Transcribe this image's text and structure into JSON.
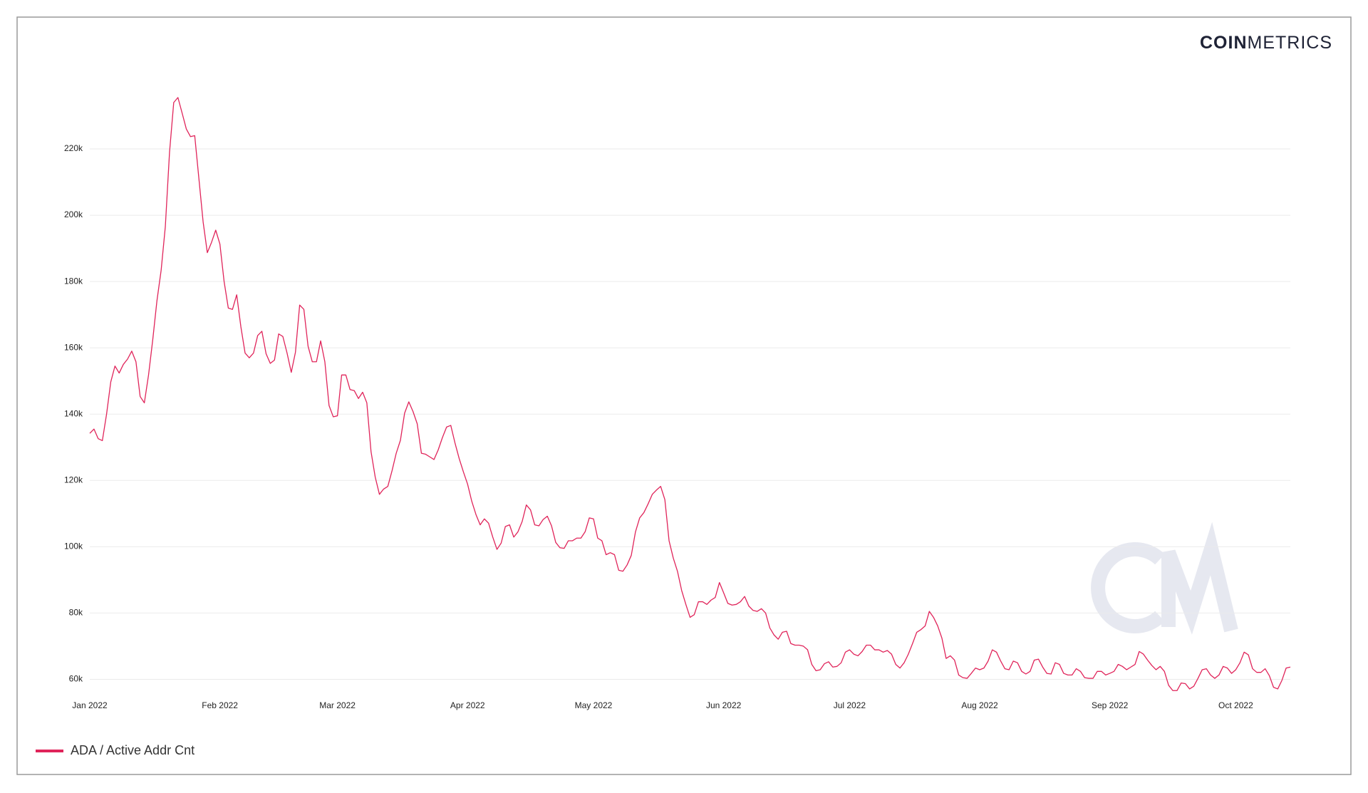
{
  "chart_data": {
    "type": "line",
    "logo_bold": "COIN",
    "logo_light": "METRICS",
    "categories": [
      "Jan 2022",
      null,
      null,
      null,
      null,
      null,
      null,
      null,
      null,
      null,
      null,
      null,
      null,
      null,
      null,
      null,
      null,
      null,
      null,
      null,
      null,
      null,
      null,
      null,
      null,
      null,
      null,
      null,
      null,
      null,
      null,
      "Feb 2022",
      null,
      null,
      null,
      null,
      null,
      null,
      null,
      null,
      null,
      null,
      null,
      null,
      null,
      null,
      null,
      null,
      null,
      null,
      null,
      null,
      null,
      null,
      null,
      null,
      null,
      null,
      null,
      "Mar 2022",
      null,
      null,
      null,
      null,
      null,
      null,
      null,
      null,
      null,
      null,
      null,
      null,
      null,
      null,
      null,
      null,
      null,
      null,
      null,
      null,
      null,
      null,
      null,
      null,
      null,
      null,
      null,
      null,
      null,
      null,
      "Apr 2022",
      null,
      null,
      null,
      null,
      null,
      null,
      null,
      null,
      null,
      null,
      null,
      null,
      null,
      null,
      null,
      null,
      null,
      null,
      null,
      null,
      null,
      null,
      null,
      null,
      null,
      null,
      null,
      null,
      null,
      "May 2022",
      null,
      null,
      null,
      null,
      null,
      null,
      null,
      null,
      null,
      null,
      null,
      null,
      null,
      null,
      null,
      null,
      null,
      null,
      null,
      null,
      null,
      null,
      null,
      null,
      null,
      null,
      null,
      null,
      null,
      null,
      "Jun 2022",
      null,
      null,
      null,
      null,
      null,
      null,
      null,
      null,
      null,
      null,
      null,
      null,
      null,
      null,
      null,
      null,
      null,
      null,
      null,
      null,
      null,
      null,
      null,
      null,
      null,
      null,
      null,
      null,
      null,
      "Jul 2022",
      null,
      null,
      null,
      null,
      null,
      null,
      null,
      null,
      null,
      null,
      null,
      null,
      null,
      null,
      null,
      null,
      null,
      null,
      null,
      null,
      null,
      null,
      null,
      null,
      null,
      null,
      null,
      null,
      null,
      null,
      "Aug 2022",
      null,
      null,
      null,
      null,
      null,
      null,
      null,
      null,
      null,
      null,
      null,
      null,
      null,
      null,
      null,
      null,
      null,
      null,
      null,
      null,
      null,
      null,
      null,
      null,
      null,
      null,
      null,
      null,
      null,
      null,
      "Sep 2022",
      null,
      null,
      null,
      null,
      null,
      null,
      null,
      null,
      null,
      null,
      null,
      null,
      null,
      null,
      null,
      null,
      null,
      null,
      null,
      null,
      null,
      null,
      null,
      null,
      null,
      null,
      null,
      null,
      null,
      "Oct 2022",
      null,
      null,
      null,
      null,
      null,
      null,
      null,
      null,
      null,
      null,
      null,
      null,
      null
    ],
    "series": [
      {
        "name": "ADA / Active Addr Cnt",
        "color": "#e0245a",
        "values": [
          134200,
          135500,
          132600,
          132000,
          140000,
          149700,
          154500,
          152400,
          155000,
          156600,
          159000,
          155800,
          145300,
          143400,
          151800,
          162400,
          174200,
          183400,
          196600,
          219000,
          234000,
          235500,
          230800,
          226000,
          223700,
          224000,
          211000,
          198000,
          188700,
          191800,
          195500,
          191300,
          180000,
          172000,
          171600,
          176000,
          166300,
          158400,
          157000,
          158400,
          163700,
          165000,
          158200,
          155300,
          156300,
          164200,
          163400,
          158400,
          152600,
          158700,
          172900,
          171600,
          160500,
          155800,
          155800,
          162100,
          155800,
          142600,
          139200,
          139500,
          151800,
          151800,
          147400,
          147100,
          144700,
          146600,
          143400,
          128700,
          121000,
          115800,
          117400,
          118200,
          122900,
          128200,
          132100,
          140300,
          143700,
          140800,
          137100,
          128200,
          127900,
          127100,
          126300,
          129200,
          132900,
          136100,
          136600,
          131300,
          126600,
          122600,
          118900,
          113700,
          109700,
          106600,
          108400,
          107100,
          102900,
          99200,
          101100,
          106100,
          106600,
          102900,
          104500,
          107600,
          112600,
          111100,
          106600,
          106300,
          108200,
          109200,
          106300,
          101300,
          99700,
          99500,
          101800,
          101800,
          102600,
          102600,
          104500,
          108700,
          108400,
          102600,
          101800,
          97600,
          98200,
          97600,
          92900,
          92600,
          94500,
          97400,
          104500,
          108700,
          110300,
          112900,
          115800,
          117100,
          118200,
          114200,
          101800,
          96600,
          92600,
          86800,
          82600,
          78700,
          79500,
          83400,
          83400,
          82600,
          83900,
          84700,
          89200,
          86100,
          82900,
          82400,
          82600,
          83400,
          85000,
          82100,
          80800,
          80500,
          81300,
          80000,
          75500,
          73400,
          72100,
          74200,
          74500,
          70800,
          70300,
          70300,
          70000,
          68900,
          64500,
          62600,
          62900,
          64700,
          65300,
          63700,
          63900,
          65000,
          68200,
          68900,
          67600,
          67100,
          68400,
          70300,
          70300,
          68900,
          68900,
          68200,
          68700,
          67600,
          64500,
          63400,
          65000,
          67600,
          70800,
          74200,
          75000,
          76100,
          80500,
          78700,
          76100,
          72400,
          66300,
          67100,
          65800,
          61300,
          60500,
          60300,
          61800,
          63400,
          62900,
          63400,
          65500,
          68900,
          68200,
          65500,
          63200,
          62900,
          65500,
          65000,
          62400,
          61600,
          62400,
          65800,
          66100,
          63700,
          61800,
          61600,
          65000,
          64500,
          61800,
          61300,
          61300,
          63200,
          62400,
          60500,
          60300,
          60300,
          62400,
          62400,
          61300,
          61800,
          62400,
          64500,
          63900,
          62900,
          63700,
          64500,
          68400,
          67600,
          65800,
          64200,
          62900,
          63900,
          62400,
          58200,
          56600,
          56600,
          58900,
          58700,
          57100,
          57900,
          60300,
          62900,
          63200,
          61300,
          60300,
          61300,
          63900,
          63400,
          61800,
          62900,
          65000,
          68200,
          67400,
          63200,
          62100,
          62100,
          63200,
          61100,
          57600,
          57100,
          59700,
          63400,
          63700
        ]
      }
    ],
    "ylim": [
      55800,
      238700
    ],
    "yticks": [
      {
        "value": 60000,
        "label": "60k"
      },
      {
        "value": 80000,
        "label": "80k"
      },
      {
        "value": 100000,
        "label": "100k"
      },
      {
        "value": 120000,
        "label": "120k"
      },
      {
        "value": 140000,
        "label": "140k"
      },
      {
        "value": 160000,
        "label": "160k"
      },
      {
        "value": 180000,
        "label": "180k"
      },
      {
        "value": 200000,
        "label": "200k"
      },
      {
        "value": 220000,
        "label": "220k"
      }
    ],
    "grid": true,
    "legend": "bottom-left"
  }
}
